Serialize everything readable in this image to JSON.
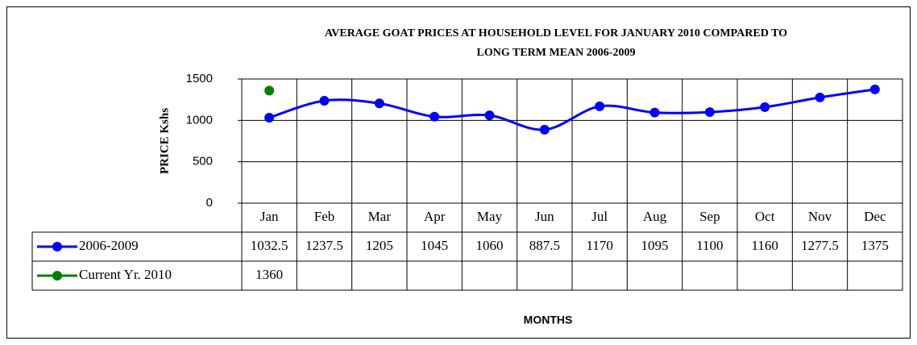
{
  "chart_data": {
    "type": "line",
    "title": "AVERAGE GOAT PRICES AT HOUSEHOLD LEVEL FOR JANUARY 2010 COMPARED TO LONG TERM MEAN 2006-2009",
    "title_lines": [
      "AVERAGE GOAT PRICES AT HOUSEHOLD LEVEL FOR JANUARY 2010 COMPARED TO",
      "LONG TERM MEAN 2006-2009"
    ],
    "x_label": "MONTHS",
    "y_label": "PRICE Kshs",
    "categories": [
      "Jan",
      "Feb",
      "Mar",
      "Apr",
      "May",
      "Jun",
      "Jul",
      "Aug",
      "Sep",
      "Oct",
      "Nov",
      "Dec"
    ],
    "series": [
      {
        "name": "2006-2009",
        "color": "#0000ff",
        "values": [
          1032.5,
          1237.5,
          1205,
          1045,
          1060,
          887.5,
          1170,
          1095,
          1100,
          1160,
          1277.5,
          1375
        ]
      },
      {
        "name": "Current Yr. 2010",
        "color": "#008000",
        "values": [
          1360,
          null,
          null,
          null,
          null,
          null,
          null,
          null,
          null,
          null,
          null,
          null
        ]
      }
    ],
    "ylim": [
      0,
      1500
    ],
    "yticks": [
      0,
      500,
      1000,
      1500
    ],
    "grid": true,
    "smooth": true
  }
}
